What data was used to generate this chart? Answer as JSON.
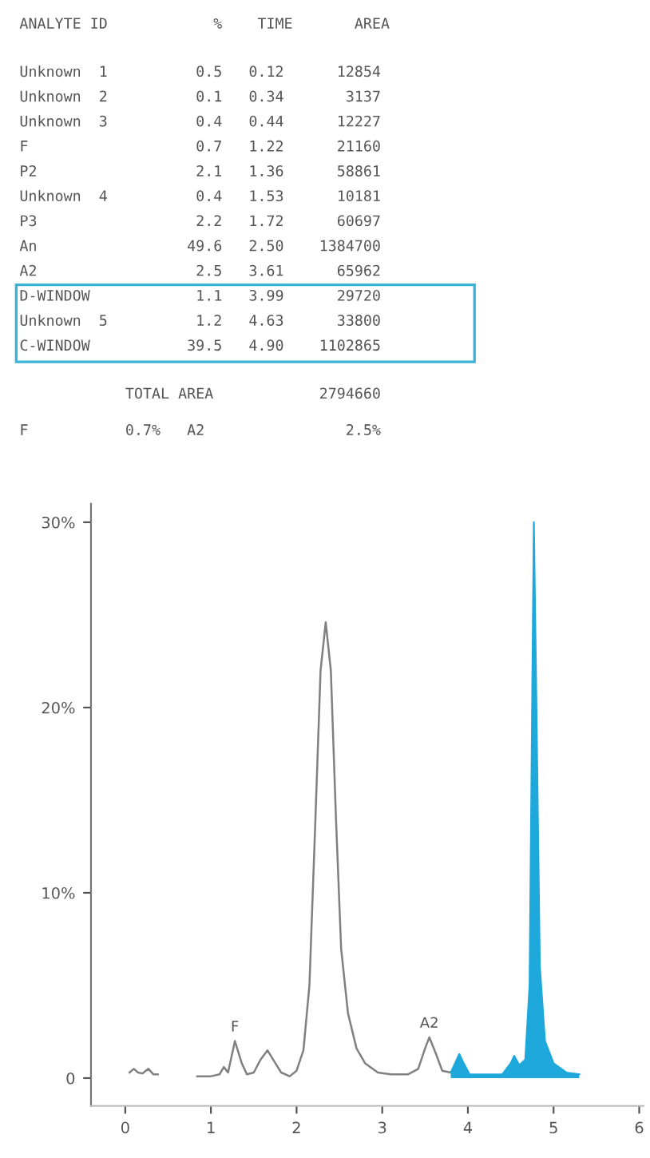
{
  "chart_data": {
    "type": "line",
    "annotations": [
      "ANALYTE ID            %    TIME       AREA",
      "Unknown  1          0.5   0.12      12854",
      "Unknown  2          0.1   0.34       3137",
      "Unknown  3          0.4   0.44      12227",
      "F                   0.7   1.22      21160",
      "P2                  2.1   1.36      58861",
      "Unknown  4          0.4   1.53      10181",
      "P3                  2.2   1.72      60697",
      "An                 49.6   2.50    1384700",
      "A2                  2.5   3.61      65962",
      "D-WINDOW            1.1   3.99      29720",
      "Unknown  5          1.2   4.63      33800",
      "C-WINDOW           39.5   4.90    1102865",
      "            TOTAL AREA            2794660",
      "F           0.7%   A2                2.5%",
      {
        "text": "F",
        "x": 1.28,
        "y": 2.0
      },
      {
        "text": "A2",
        "x": 3.55,
        "y": 2.2
      }
    ],
    "series": [
      {
        "color": "#808080",
        "x": [
          0.05,
          0.1,
          0.15,
          0.2,
          0.27,
          0.33,
          0.38,
          0.6,
          0.84,
          1.0,
          1.1,
          1.15,
          1.2,
          1.28,
          1.36,
          1.42,
          1.5,
          1.58,
          1.66,
          1.74,
          1.82,
          1.92,
          2.0,
          2.08,
          2.15,
          2.22,
          2.28,
          2.34,
          2.4,
          2.46,
          2.52,
          2.6,
          2.7,
          2.8,
          2.95,
          3.1,
          3.3,
          3.42,
          3.5,
          3.55,
          3.62,
          3.7,
          3.8
        ],
        "values": [
          0.3,
          0.5,
          0.3,
          0.25,
          0.5,
          0.2,
          0.2,
          null,
          0.1,
          0.1,
          0.2,
          0.6,
          0.3,
          2.0,
          0.8,
          0.2,
          0.3,
          1.0,
          1.5,
          0.9,
          0.3,
          0.1,
          0.4,
          1.5,
          5,
          14,
          22,
          24.6,
          22,
          14,
          7,
          3.5,
          1.6,
          0.8,
          0.3,
          0.2,
          0.2,
          0.5,
          1.6,
          2.2,
          1.4,
          0.4,
          0.3
        ]
      },
      {
        "type": "area",
        "color": "#1ea8dc",
        "x": [
          3.8,
          3.85,
          3.9,
          3.95,
          4.02,
          4.2,
          4.4,
          4.5,
          4.54,
          4.6,
          4.67,
          4.72,
          4.75,
          4.77,
          4.8,
          4.84,
          4.9,
          5.0,
          5.15,
          5.3
        ],
        "values": [
          0.3,
          0.8,
          1.3,
          0.8,
          0.2,
          0.2,
          0.2,
          0.8,
          1.2,
          0.7,
          1.0,
          5,
          20,
          30,
          20,
          6,
          2,
          0.8,
          0.3,
          0.2
        ]
      }
    ],
    "xlim": [
      -0.4,
      6.05
    ],
    "xticks": [
      0,
      1,
      2,
      3,
      4,
      5,
      6
    ],
    "ylim": [
      -1.5,
      31
    ],
    "yticks": [
      0,
      {
        "value": 10,
        "label": "10%"
      },
      {
        "value": 20,
        "label": "20%"
      },
      {
        "value": 30,
        "label": "30%"
      }
    ],
    "grid": false,
    "legend": false
  }
}
